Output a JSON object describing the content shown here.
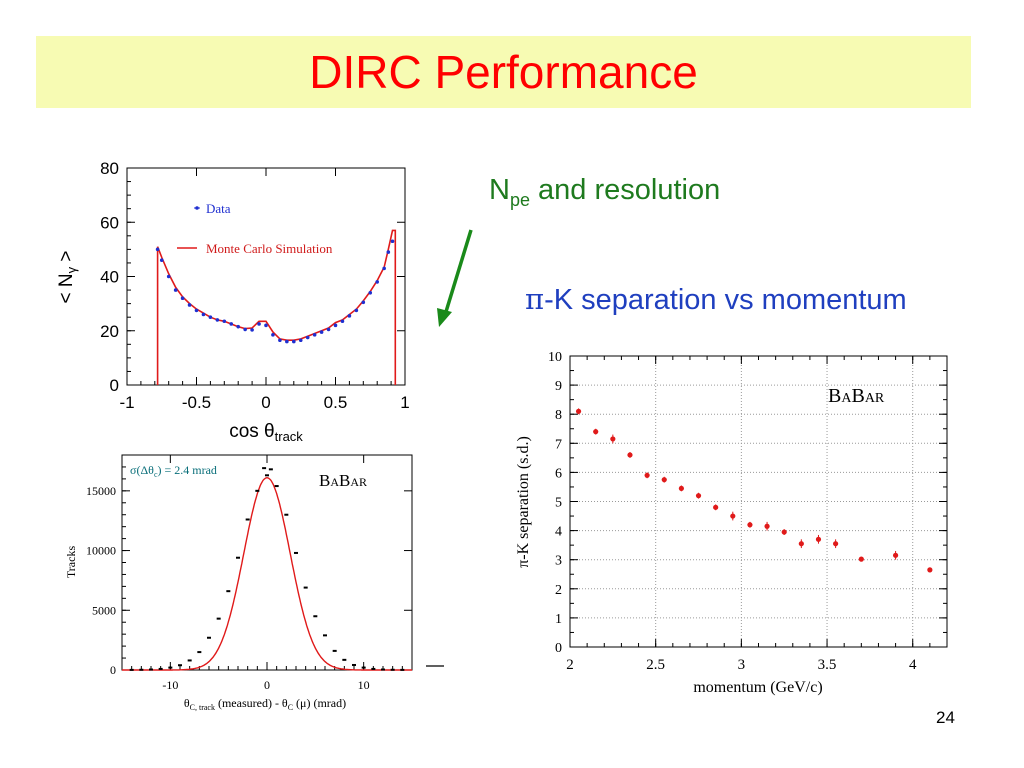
{
  "slide": {
    "title": "DIRC Performance",
    "subtitle_npe_base": "N",
    "subtitle_npe_sub": "pe",
    "subtitle_npe_rest": " and resolution",
    "subtitle_sep_pi": "π",
    "subtitle_sep_rest": "-K separation vs momentum",
    "page_number": "24",
    "colors": {
      "title": "#ff0000",
      "title_band": "#f7fbb3",
      "green_text": "#1e7a1e",
      "blue_text": "#1f3fbf",
      "arrow": "#1a8a1a"
    },
    "icons": [
      "arrow-down-left-icon"
    ]
  },
  "chart_data": [
    {
      "id": "npe",
      "type": "line",
      "title": "",
      "xlabel_main": "cos θ",
      "xlabel_sub": "track",
      "ylabel": "< N",
      "ylabel_sub": "γ",
      "ylabel_end": " >",
      "xlim": [
        -1,
        1
      ],
      "ylim": [
        0,
        80
      ],
      "x_ticks": [
        -1,
        -0.5,
        0,
        0.5,
        1
      ],
      "x_tick_labels": [
        "-1",
        "-0.5",
        "0",
        "0.5",
        "1"
      ],
      "y_ticks": [
        0,
        20,
        40,
        60,
        80
      ],
      "y_tick_labels": [
        "0",
        "20",
        "40",
        "60",
        "80"
      ],
      "grid": false,
      "legend_position": "top-left",
      "series": [
        {
          "name": "Data",
          "color": "#1f2fd0",
          "style": "points",
          "x": [
            -0.78,
            -0.75,
            -0.7,
            -0.65,
            -0.6,
            -0.55,
            -0.5,
            -0.45,
            -0.4,
            -0.35,
            -0.3,
            -0.25,
            -0.2,
            -0.15,
            -0.1,
            -0.05,
            0.0,
            0.05,
            0.1,
            0.15,
            0.2,
            0.25,
            0.3,
            0.35,
            0.4,
            0.45,
            0.5,
            0.55,
            0.6,
            0.65,
            0.7,
            0.75,
            0.8,
            0.85,
            0.88,
            0.91
          ],
          "y": [
            50,
            46,
            40,
            35,
            32,
            29.5,
            27.5,
            26,
            25,
            24,
            23.5,
            22.5,
            21.5,
            20.5,
            20.3,
            22.5,
            22,
            18.5,
            16.5,
            16,
            16,
            16.5,
            17.5,
            18.5,
            19.5,
            20.5,
            22,
            23.5,
            25.5,
            27.5,
            30.5,
            34,
            38,
            43,
            49,
            53
          ]
        },
        {
          "name": "Monte Carlo Simulation",
          "color": "#e01a1a",
          "style": "line",
          "x": [
            -0.78,
            -0.78,
            -0.75,
            -0.7,
            -0.65,
            -0.6,
            -0.55,
            -0.5,
            -0.45,
            -0.4,
            -0.35,
            -0.3,
            -0.25,
            -0.2,
            -0.15,
            -0.1,
            -0.05,
            0.0,
            0.05,
            0.1,
            0.15,
            0.2,
            0.25,
            0.3,
            0.35,
            0.4,
            0.45,
            0.5,
            0.55,
            0.6,
            0.65,
            0.7,
            0.75,
            0.8,
            0.85,
            0.88,
            0.91,
            0.93,
            0.93
          ],
          "y": [
            0,
            51,
            47,
            41,
            36,
            32.5,
            30,
            28,
            26.5,
            25,
            24,
            23.5,
            22.5,
            21.5,
            20.8,
            21,
            23.5,
            23.5,
            19.5,
            17,
            16.5,
            16.5,
            17,
            18,
            19,
            20,
            21,
            23,
            24,
            26,
            28,
            31,
            34.5,
            38.5,
            43.5,
            50,
            57,
            57,
            0
          ]
        }
      ]
    },
    {
      "id": "resolution",
      "type": "line",
      "title": "",
      "annotation": "σ(Δθc) = 2.4 mrad",
      "annotation_parts": {
        "a": "σ(Δθ",
        "sub": "c",
        "b": ") = 2.4 mrad"
      },
      "logo": "BABAR",
      "xlabel": "θC, track (measured) - θC (μ)   (mrad)",
      "xlabel_parts": {
        "a": "θ",
        "sub1": "C, track",
        "b": " (measured) - θ",
        "sub2": "C",
        "c": " (μ)   (mrad)"
      },
      "ylabel": "Tracks",
      "xlim": [
        -15,
        15
      ],
      "ylim": [
        0,
        18000
      ],
      "x_ticks": [
        -10,
        0,
        10
      ],
      "x_tick_labels": [
        "-10",
        "0",
        "10"
      ],
      "y_ticks": [
        0,
        5000,
        10000,
        15000
      ],
      "y_tick_labels": [
        "0",
        "5000",
        "10000",
        "15000"
      ],
      "grid": false,
      "series": [
        {
          "name": "",
          "color": "#000000",
          "style": "points",
          "x": [
            -14,
            -13,
            -12,
            -11,
            -10,
            -9,
            -8,
            -7,
            -6,
            -5,
            -4,
            -3,
            -2,
            -1,
            0,
            1,
            2,
            3,
            4,
            5,
            6,
            7,
            8,
            9,
            10,
            11,
            12,
            13,
            14
          ],
          "y": [
            10,
            20,
            40,
            90,
            200,
            400,
            800,
            1500,
            2700,
            4300,
            6600,
            9400,
            12600,
            15000,
            16300,
            15400,
            13000,
            9800,
            6900,
            4500,
            2900,
            1600,
            850,
            420,
            200,
            90,
            40,
            20,
            10
          ]
        },
        {
          "name": "",
          "color": "#e01a1a",
          "style": "gaussian",
          "amplitude": 16100,
          "mean": 0,
          "sigma": 2.4
        }
      ],
      "outlier_points": [
        {
          "x": -0.3,
          "y": 16900
        },
        {
          "x": 0.4,
          "y": 16800
        }
      ]
    },
    {
      "id": "separation",
      "type": "scatter",
      "title": "",
      "logo": "BABAR",
      "xlabel": "momentum (GeV/c)",
      "ylabel": "π-K separation (s.d.)",
      "xlim": [
        2,
        4.2
      ],
      "ylim": [
        0,
        10
      ],
      "x_ticks": [
        2,
        2.5,
        3,
        3.5,
        4
      ],
      "x_tick_labels": [
        "2",
        "2.5",
        "3",
        "3.5",
        "4"
      ],
      "y_ticks": [
        0,
        1,
        2,
        3,
        4,
        5,
        6,
        7,
        8,
        9,
        10
      ],
      "y_tick_labels": [
        "0",
        "1",
        "2",
        "3",
        "4",
        "5",
        "6",
        "7",
        "8",
        "9",
        "10"
      ],
      "grid": true,
      "series": [
        {
          "name": "",
          "color": "#e01a1a",
          "x": [
            2.05,
            2.15,
            2.25,
            2.35,
            2.45,
            2.55,
            2.65,
            2.75,
            2.85,
            2.95,
            3.05,
            3.15,
            3.25,
            3.35,
            3.45,
            3.55,
            3.7,
            3.9,
            4.1
          ],
          "y": [
            8.1,
            7.4,
            7.15,
            6.6,
            5.9,
            5.75,
            5.45,
            5.2,
            4.8,
            4.5,
            4.2,
            4.15,
            3.95,
            3.55,
            3.7,
            3.55,
            3.02,
            3.15,
            2.65
          ],
          "err": [
            0.1,
            0.1,
            0.15,
            0.1,
            0.1,
            0.1,
            0.1,
            0.1,
            0.1,
            0.15,
            0.1,
            0.15,
            0.1,
            0.15,
            0.15,
            0.15,
            0.05,
            0.15,
            0.05
          ]
        }
      ]
    }
  ]
}
